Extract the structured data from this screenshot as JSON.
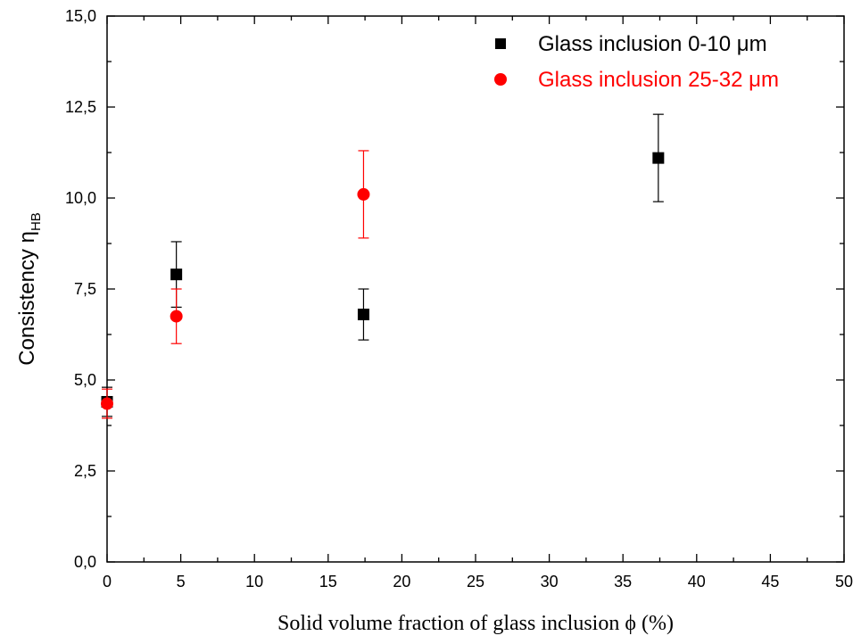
{
  "chart_data": {
    "type": "scatter",
    "xlabel": "Solid volume fraction of glass inclusion ϕ (%)",
    "ylabel": {
      "main": "Consistency η",
      "sub": "HB"
    },
    "xlim": [
      0,
      50
    ],
    "ylim": [
      0,
      15
    ],
    "xticks": [
      "0",
      "5",
      "10",
      "15",
      "20",
      "25",
      "30",
      "35",
      "40",
      "45",
      "50"
    ],
    "yticks": [
      "0,0",
      "2,5",
      "5,0",
      "7,5",
      "10,0",
      "12,5",
      "15,0"
    ],
    "legend_position": "top-right",
    "series": [
      {
        "name": "Glass inclusion 0-10 μm",
        "color": "#000000",
        "marker": "square",
        "points": [
          {
            "x": 0,
            "y": 4.4,
            "err": 0.4
          },
          {
            "x": 4.7,
            "y": 7.9,
            "err": 0.9
          },
          {
            "x": 17.4,
            "y": 6.8,
            "err": 0.7
          },
          {
            "x": 37.4,
            "y": 11.1,
            "err": 1.2
          }
        ]
      },
      {
        "name": "Glass inclusion 25-32 μm",
        "color": "#ff0000",
        "marker": "circle",
        "points": [
          {
            "x": 0,
            "y": 4.35,
            "err": 0.4
          },
          {
            "x": 4.7,
            "y": 6.75,
            "err": 0.75
          },
          {
            "x": 17.4,
            "y": 10.1,
            "err": 1.2
          }
        ]
      }
    ]
  }
}
